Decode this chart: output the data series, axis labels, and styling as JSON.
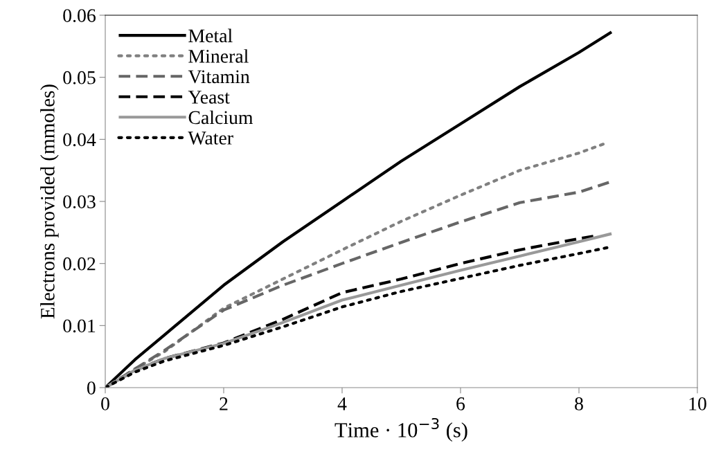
{
  "chart_data": {
    "type": "line",
    "xlabel": "Time · 10$^{−3}$ (s)",
    "ylabel": "Electrons provided (mmoles)",
    "xlim": [
      0,
      10
    ],
    "ylim": [
      0,
      0.06
    ],
    "xticks": [
      0,
      2,
      4,
      6,
      8,
      10
    ],
    "yticks": [
      0,
      0.01,
      0.02,
      0.03,
      0.04,
      0.05,
      0.06
    ],
    "grid": false,
    "legend": "top left",
    "marker": "none",
    "series": [
      {
        "name": "Metal",
        "color": "#000000",
        "line_style": "solid",
        "x": [
          0,
          0.5,
          1,
          2,
          3,
          4,
          5,
          6,
          7,
          8,
          8.55
        ],
        "values": [
          0,
          0.0045,
          0.0085,
          0.0165,
          0.0235,
          0.03,
          0.0365,
          0.0425,
          0.0485,
          0.054,
          0.0573
        ]
      },
      {
        "name": "Mineral",
        "color": "#808080",
        "line_style": "dotted",
        "x": [
          0,
          0.5,
          1,
          2,
          3,
          4,
          5,
          6,
          7,
          8,
          8.43
        ],
        "values": [
          0,
          0.003,
          0.0058,
          0.0128,
          0.0175,
          0.0222,
          0.0268,
          0.031,
          0.035,
          0.0378,
          0.0393
        ]
      },
      {
        "name": "Vitamin",
        "color": "#666666",
        "line_style": "dashed",
        "x": [
          0,
          0.5,
          1,
          2,
          3,
          4,
          5,
          6,
          7,
          8,
          8.55
        ],
        "values": [
          0,
          0.003,
          0.006,
          0.0125,
          0.0165,
          0.02,
          0.0234,
          0.0267,
          0.0298,
          0.0315,
          0.0332
        ]
      },
      {
        "name": "Yeast",
        "color": "#000000",
        "line_style": "dashed",
        "x": [
          0,
          0.5,
          1,
          2,
          3,
          4,
          5,
          6,
          7,
          8,
          8.3
        ],
        "values": [
          0,
          0.0028,
          0.0047,
          0.0072,
          0.011,
          0.0153,
          0.0175,
          0.02,
          0.0222,
          0.024,
          0.0245
        ]
      },
      {
        "name": "Calcium",
        "color": "#999999",
        "line_style": "solid",
        "x": [
          0,
          0.5,
          1,
          2,
          3,
          4,
          5,
          6,
          7,
          8,
          8.55
        ],
        "values": [
          0,
          0.0028,
          0.0047,
          0.0071,
          0.0105,
          0.0141,
          0.0165,
          0.0189,
          0.0212,
          0.0235,
          0.0248
        ]
      },
      {
        "name": "Water",
        "color": "#000000",
        "line_style": "dotted",
        "x": [
          0,
          0.5,
          1,
          2,
          3,
          4,
          5,
          6,
          7,
          8,
          8.55
        ],
        "values": [
          0,
          0.0025,
          0.0043,
          0.0068,
          0.0098,
          0.013,
          0.0155,
          0.0176,
          0.0197,
          0.0216,
          0.0227
        ]
      }
    ]
  }
}
